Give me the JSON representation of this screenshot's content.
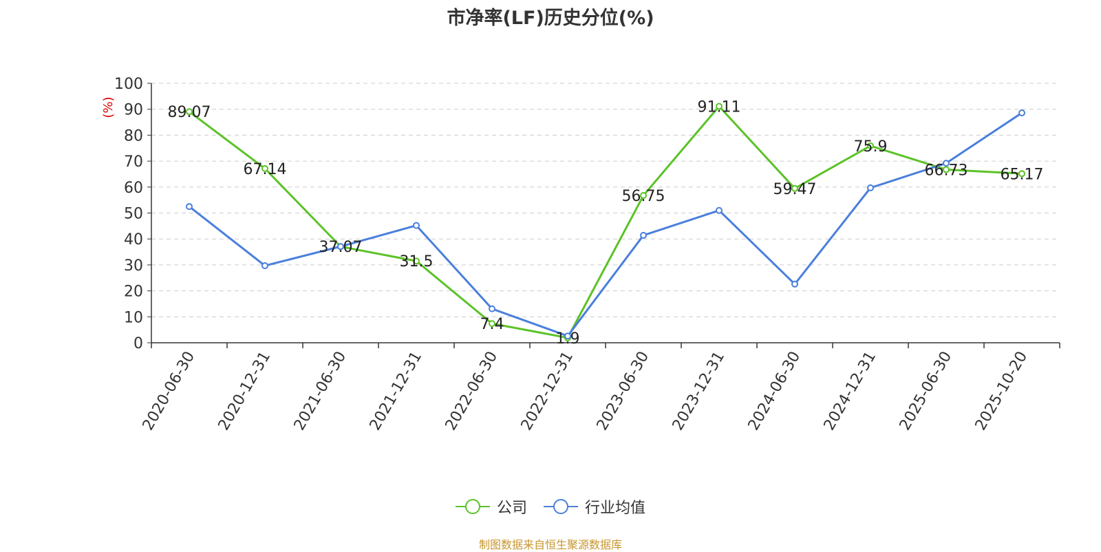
{
  "chart_data": {
    "type": "line",
    "title": "市净率(LF)历史分位(%)",
    "ylabel": "(%)",
    "ylim": [
      0,
      100
    ],
    "yticks": [
      "0",
      "10",
      "20",
      "30",
      "40",
      "50",
      "60",
      "70",
      "80",
      "90",
      "100"
    ],
    "categories": [
      "2020-06-30",
      "2020-12-31",
      "2021-06-30",
      "2021-12-31",
      "2022-06-30",
      "2022-12-31",
      "2023-06-30",
      "2023-12-31",
      "2024-06-30",
      "2024-12-31",
      "2025-06-30",
      "2025-10-20"
    ],
    "grid": true,
    "legend_position": "bottom-center",
    "series": [
      {
        "name": "公司",
        "color": "#5bc227",
        "values": [
          89.07,
          67.14,
          37.07,
          31.5,
          7.4,
          1.9,
          56.75,
          91.11,
          59.47,
          75.9,
          66.73,
          65.17
        ],
        "labels": [
          "89.07",
          "67.14",
          "37.07",
          "31.5",
          "7.4",
          "1.9",
          "56.75",
          "91.11",
          "59.47",
          "75.9",
          "66.73",
          "65.17"
        ]
      },
      {
        "name": "行业均值",
        "color": "#4a7fdc",
        "values": [
          52.5,
          29.7,
          37.1,
          45.2,
          13.1,
          2.6,
          41.4,
          51.0,
          22.6,
          59.7,
          69.2,
          88.6
        ]
      }
    ]
  },
  "footer": {
    "source": "制图数据来自恒生聚源数据库"
  }
}
